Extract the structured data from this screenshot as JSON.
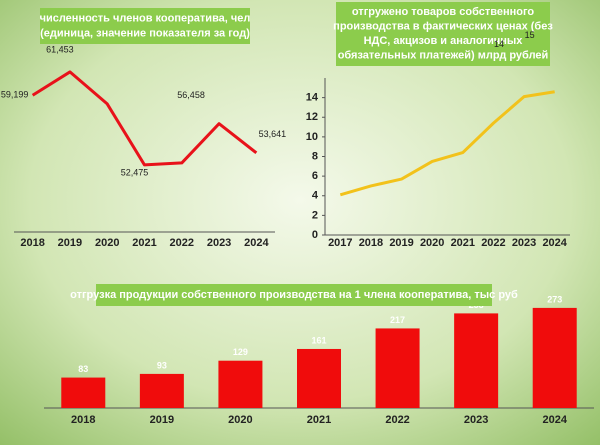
{
  "chart_data": [
    {
      "type": "line",
      "title_lines": [
        "численность членов кооператива, чел",
        "(единица, значение показателя за год)"
      ],
      "categories": [
        "2018",
        "2019",
        "2020",
        "2021",
        "2022",
        "2023",
        "2024"
      ],
      "values": [
        59199,
        61453,
        58365,
        52475,
        52668,
        56458,
        53641
      ],
      "value_labels": [
        "59,199",
        "61,453",
        null,
        "52,475",
        null,
        "56,458",
        "53,641"
      ],
      "color": "#e8121a",
      "ylim": [
        46000,
        65500
      ]
    },
    {
      "type": "line",
      "title_lines": [
        "отгружено товаров собственного",
        "производства в фактических ценах (без",
        "НДС, акцизов и аналогичных",
        "обязательных платежей) млрд рублей"
      ],
      "categories": [
        "2017",
        "2018",
        "2019",
        "2020",
        "2021",
        "2022",
        "2023",
        "2024"
      ],
      "values": [
        4.1,
        5.0,
        5.7,
        7.5,
        8.4,
        11.4,
        14.1,
        14.6
      ],
      "value_labels": [
        null,
        null,
        null,
        null,
        null,
        null,
        "14",
        "15"
      ],
      "color": "#f2c21b",
      "ylim": [
        0,
        16
      ],
      "yticks": [
        0,
        2,
        4,
        6,
        8,
        10,
        12,
        14
      ]
    },
    {
      "type": "bar",
      "title_lines": [
        "отгрузка продукции собственного производства на 1 члена кооператива, тыс руб"
      ],
      "categories": [
        "2018",
        "2019",
        "2020",
        "2021",
        "2022",
        "2023",
        "2024"
      ],
      "values": [
        83,
        93,
        129,
        161,
        217,
        258,
        273
      ],
      "color": "#f00c0c",
      "ylim": [
        0,
        300
      ]
    }
  ]
}
